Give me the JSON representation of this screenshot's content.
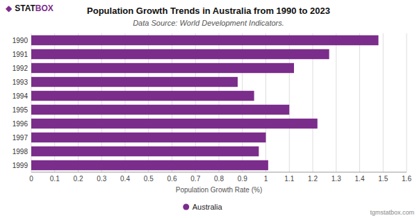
{
  "chart_data": {
    "type": "bar",
    "orientation": "horizontal",
    "title": "Population Growth Trends in Australia from 1990 to 2023",
    "subtitle": "Data Source: World Development Indicators.",
    "xlabel": "Population Growth Rate (%)",
    "categories": [
      "1990",
      "1991",
      "1992",
      "1993",
      "1994",
      "1995",
      "1996",
      "1997",
      "1998",
      "1999"
    ],
    "series": [
      {
        "name": "Australia",
        "color": "#7B2D8B",
        "values": [
          1.48,
          1.27,
          1.12,
          0.88,
          0.95,
          1.1,
          1.22,
          1.0,
          0.97,
          1.01
        ]
      }
    ],
    "xlim": [
      0,
      1.6
    ],
    "xticks": [
      0,
      0.1,
      0.2,
      0.3,
      0.4,
      0.5,
      0.6,
      0.7,
      0.8,
      0.9,
      1.0,
      1.1,
      1.2,
      1.3,
      1.4,
      1.5,
      1.6
    ],
    "grid": true,
    "legend": "bottom",
    "annotations": [
      "◆",
      "STAT",
      "BOX",
      "tgmstatbox.com"
    ]
  }
}
